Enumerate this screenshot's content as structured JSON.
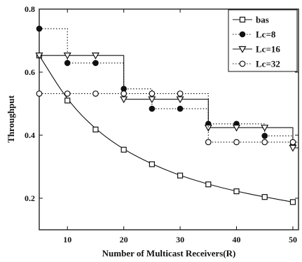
{
  "chart_data": {
    "type": "line",
    "xlabel": "Number of Multicast Receivers(R)",
    "ylabel": "Throughput",
    "xlim": [
      5,
      51
    ],
    "ylim": [
      0.1,
      0.8
    ],
    "x_ticks": [
      10,
      20,
      30,
      40,
      50
    ],
    "x_tick_labels": [
      "10",
      "20",
      "30",
      "40",
      "50"
    ],
    "y_ticks": [
      0.2,
      0.4,
      0.6,
      0.8
    ],
    "y_tick_labels": [
      "0.2",
      "0.4",
      "0.6",
      "0.8"
    ],
    "legend_position": "top-right",
    "grid": false,
    "series": [
      {
        "name": "bas",
        "marker": "open-square",
        "line_style": "solid",
        "step": false,
        "color": "#111111",
        "x": [
          5,
          10,
          15,
          20,
          25,
          30,
          35,
          40,
          45,
          50
        ],
        "y": [
          0.653,
          0.51,
          0.418,
          0.354,
          0.308,
          0.272,
          0.244,
          0.222,
          0.204,
          0.188
        ]
      },
      {
        "name": "Lc=8",
        "marker": "filled-circle",
        "line_style": "dotted",
        "step": true,
        "color": "#111111",
        "x": [
          5,
          10,
          15,
          20,
          25,
          30,
          35,
          40,
          45,
          50
        ],
        "y": [
          0.738,
          0.629,
          0.629,
          0.547,
          0.484,
          0.484,
          0.436,
          0.436,
          0.398,
          0.368
        ]
      },
      {
        "name": "Lc=16",
        "marker": "open-triangle-down",
        "line_style": "solid",
        "step": true,
        "color": "#111111",
        "x": [
          5,
          10,
          15,
          20,
          25,
          30,
          35,
          40,
          45,
          50
        ],
        "y": [
          0.653,
          0.653,
          0.653,
          0.514,
          0.514,
          0.514,
          0.424,
          0.424,
          0.424,
          0.36
        ]
      },
      {
        "name": "Lc=32",
        "marker": "open-circle",
        "line_style": "dotted",
        "step": true,
        "color": "#111111",
        "x": [
          5,
          10,
          15,
          20,
          25,
          30,
          35,
          40,
          45,
          50
        ],
        "y": [
          0.532,
          0.532,
          0.532,
          0.532,
          0.532,
          0.532,
          0.378,
          0.378,
          0.378,
          0.378
        ]
      }
    ]
  }
}
